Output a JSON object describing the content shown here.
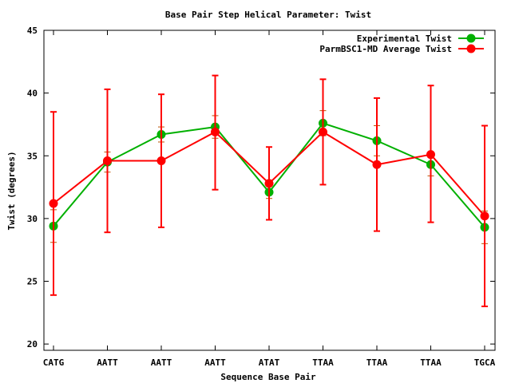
{
  "chart_data": {
    "type": "line",
    "title": "Base Pair Step Helical Parameter: Twist",
    "xlabel": "Sequence Base Pair",
    "ylabel": "Twist (degrees)",
    "categories": [
      "CATG",
      "AATT",
      "AATT",
      "AATT",
      "ATAT",
      "TTAA",
      "TTAA",
      "TTAA",
      "TGCA"
    ],
    "ylim": [
      19.5,
      45
    ],
    "yticks": [
      20,
      25,
      30,
      35,
      40,
      45
    ],
    "grid": false,
    "legend_position": "top-right",
    "series": [
      {
        "name": "Experimental Twist",
        "color": "#00b000",
        "values": [
          29.4,
          34.5,
          36.7,
          37.3,
          32.1,
          37.6,
          36.2,
          34.3,
          29.3
        ],
        "err_low": [
          28.1,
          33.7,
          36.1,
          36.4,
          31.6,
          36.6,
          35.0,
          33.4,
          28.0
        ],
        "err_high": [
          30.7,
          35.3,
          37.3,
          38.2,
          32.6,
          38.6,
          37.4,
          35.2,
          30.6
        ]
      },
      {
        "name": "ParmBSC1-MD Average Twist",
        "color": "#ff0000",
        "values": [
          31.2,
          34.6,
          34.6,
          36.9,
          32.8,
          36.9,
          34.3,
          35.1,
          30.2
        ],
        "err_low": [
          23.9,
          28.9,
          29.3,
          32.3,
          29.9,
          32.7,
          29.0,
          29.7,
          23.0
        ],
        "err_high": [
          38.5,
          40.3,
          39.9,
          41.4,
          35.7,
          41.1,
          39.6,
          40.6,
          37.4
        ]
      }
    ]
  }
}
